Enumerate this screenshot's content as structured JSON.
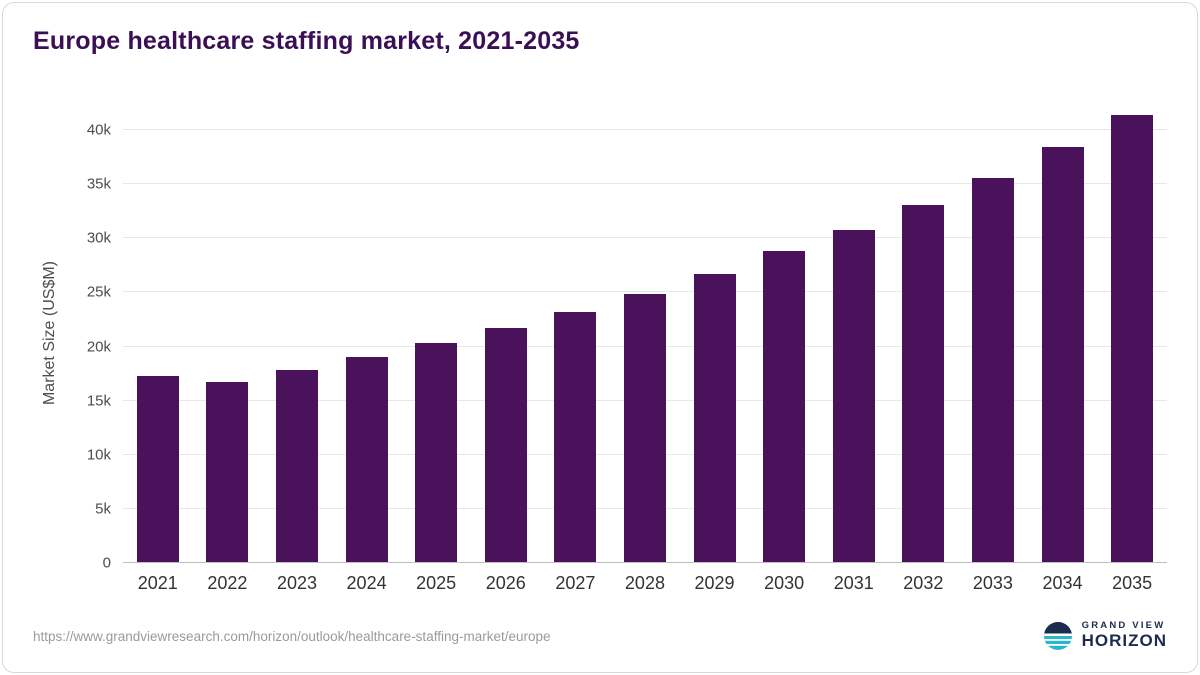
{
  "title": "Europe healthcare staffing market, 2021-2035",
  "source_url": "https://www.grandviewresearch.com/horizon/outlook/healthcare-staffing-market/europe",
  "logo": {
    "top": "GRAND VIEW",
    "bottom": "HORIZON"
  },
  "colors": {
    "bar": "#4a125a",
    "title": "#3a0f53",
    "logo_navy": "#1c2b4e",
    "logo_teal": "#29b7cd"
  },
  "chart_data": {
    "type": "bar",
    "title": "Europe healthcare staffing market, 2021-2035",
    "categories": [
      "2021",
      "2022",
      "2023",
      "2024",
      "2025",
      "2026",
      "2027",
      "2028",
      "2029",
      "2030",
      "2031",
      "2032",
      "2033",
      "2034",
      "2035"
    ],
    "values": [
      17300,
      16700,
      17800,
      19000,
      20300,
      21700,
      23200,
      24900,
      26700,
      28800,
      30800,
      33100,
      35600,
      38400,
      41400
    ],
    "xlabel": "",
    "ylabel": "Market Size (US$M)",
    "ylim": [
      0,
      42500
    ],
    "yticks": [
      0,
      5000,
      10000,
      15000,
      20000,
      25000,
      30000,
      35000,
      40000
    ],
    "ytick_labels": [
      "0",
      "5k",
      "10k",
      "15k",
      "20k",
      "25k",
      "30k",
      "35k",
      "40k"
    ],
    "grid": true,
    "legend": "none",
    "bar_color": "#4a125a"
  }
}
